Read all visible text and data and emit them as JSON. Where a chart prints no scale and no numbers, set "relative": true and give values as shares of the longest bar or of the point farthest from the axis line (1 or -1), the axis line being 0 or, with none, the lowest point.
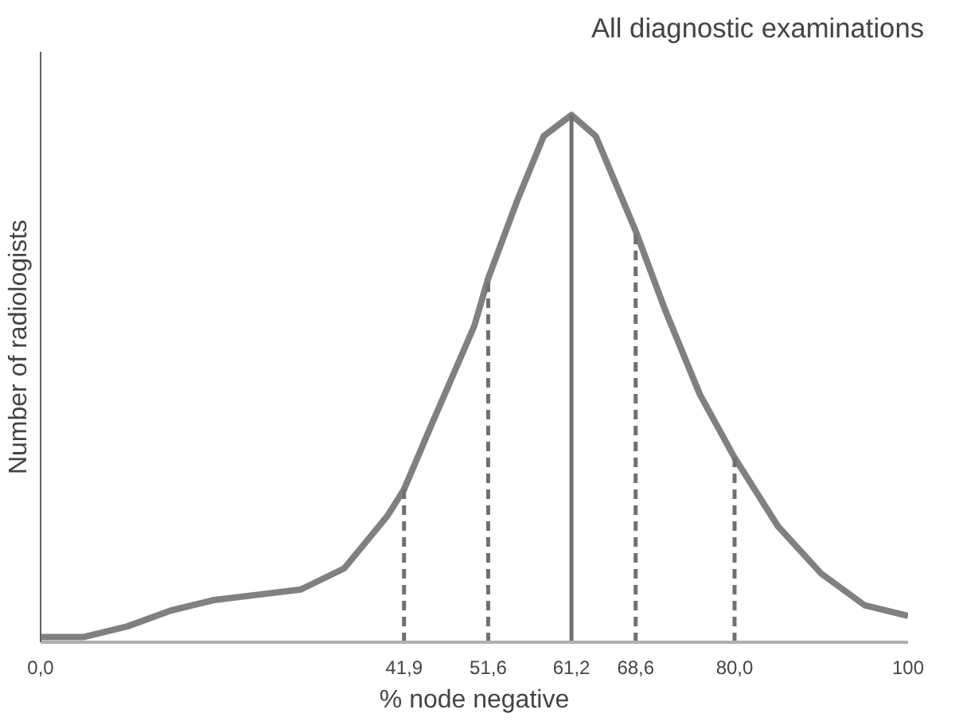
{
  "chart_data": {
    "type": "line",
    "title": "All diagnostic examinations",
    "xlabel": "% node negative",
    "ylabel": "Number of radiologists",
    "relative": true,
    "x": [
      0,
      5,
      10,
      15,
      20,
      25,
      30,
      35,
      40,
      41.9,
      45,
      50,
      51.6,
      55,
      58,
      61.2,
      64,
      68.6,
      72,
      76,
      80,
      85,
      90,
      95,
      100
    ],
    "series": [
      {
        "color": "#808080",
        "values": [
          0.01,
          0.01,
          0.03,
          0.06,
          0.08,
          0.09,
          0.1,
          0.14,
          0.24,
          0.29,
          0.41,
          0.6,
          0.69,
          0.84,
          0.96,
          1,
          0.96,
          0.78,
          0.63,
          0.47,
          0.35,
          0.22,
          0.13,
          0.07,
          0.05
        ]
      }
    ],
    "xlim": [
      0,
      100
    ],
    "xticks": [
      {
        "value": 0,
        "label": "0,0"
      },
      {
        "value": 41.9,
        "label": "41,9"
      },
      {
        "value": 51.6,
        "label": "51,6"
      },
      {
        "value": 61.2,
        "label": "61,2"
      },
      {
        "value": 68.6,
        "label": "68,6"
      },
      {
        "value": 80,
        "label": "80,0"
      },
      100
    ],
    "ref_lines": [
      {
        "axis": "x",
        "value": 41.9,
        "line_style": "dashed",
        "color": "#707070"
      },
      {
        "axis": "x",
        "value": 51.6,
        "line_style": "dashed",
        "color": "#707070"
      },
      {
        "axis": "x",
        "value": 61.2,
        "line_style": "solid",
        "color": "#707070"
      },
      {
        "axis": "x",
        "value": 68.6,
        "line_style": "dashed",
        "color": "#707070"
      },
      {
        "axis": "x",
        "value": 80,
        "line_style": "dashed",
        "color": "#707070"
      }
    ],
    "grid": false,
    "marker": "none",
    "line_style": "solid"
  }
}
